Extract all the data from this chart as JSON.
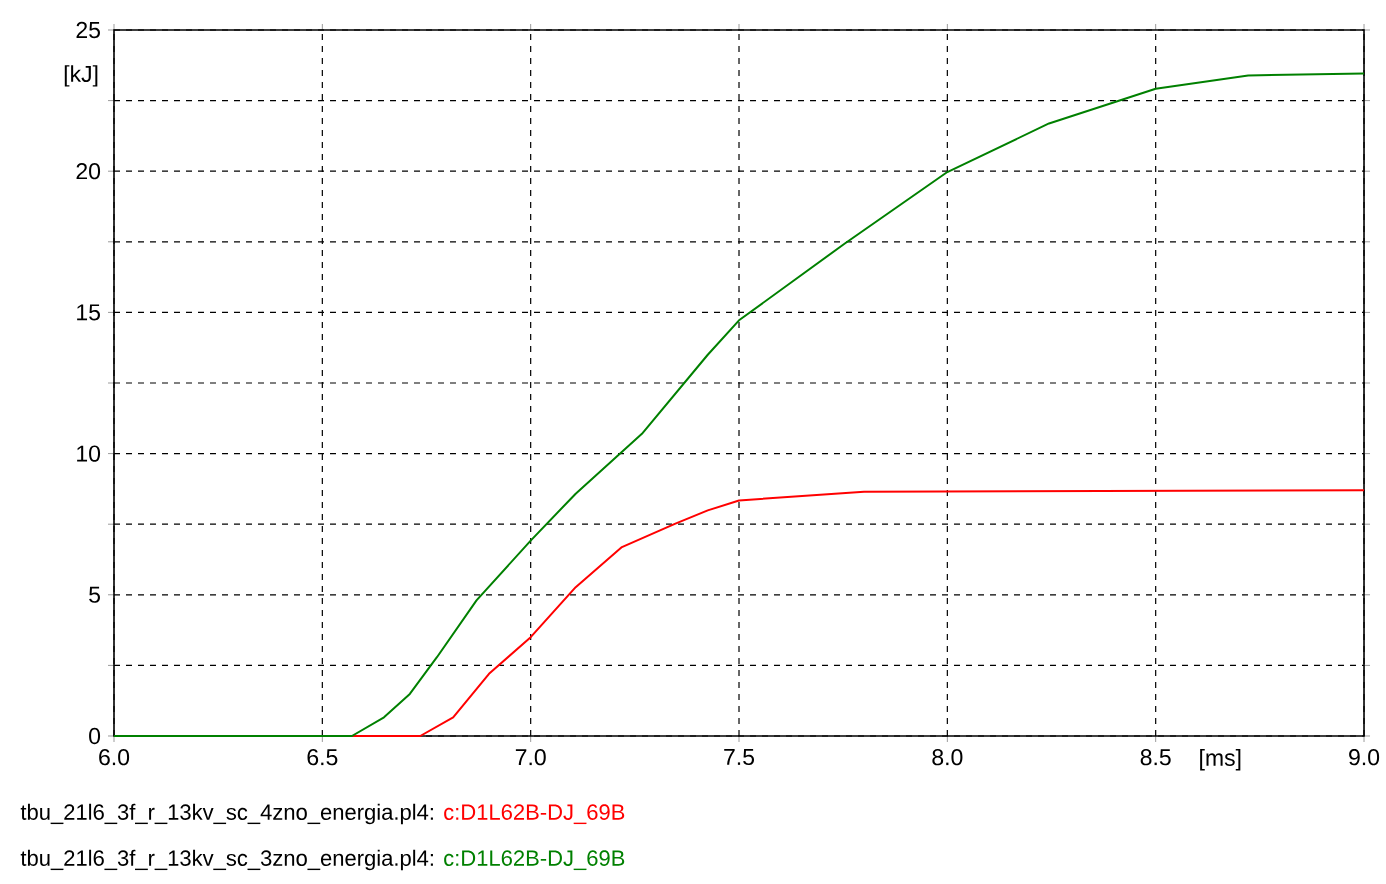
{
  "chart_data": {
    "type": "line",
    "xlabel": "[ms]",
    "ylabel": "[kJ]",
    "xlim": [
      6,
      9
    ],
    "ylim": [
      0,
      25
    ],
    "xticks": [
      {
        "value": 6,
        "label": "6.0"
      },
      {
        "value": 6.5,
        "label": "6.5"
      },
      {
        "value": 7,
        "label": "7.0"
      },
      {
        "value": 7.5,
        "label": "7.5"
      },
      {
        "value": 8,
        "label": "8.0"
      },
      {
        "value": 8.5,
        "label": "8.5"
      },
      {
        "value": 9,
        "label": "9.0"
      }
    ],
    "yticks": [
      0,
      {
        "value": 2.5,
        "label": null
      },
      5,
      {
        "value": 7.5,
        "label": null
      },
      10,
      {
        "value": 12.5,
        "label": null
      },
      15,
      {
        "value": 17.5,
        "label": null
      },
      20,
      {
        "value": 22.5,
        "label": null
      },
      25
    ],
    "grid": true,
    "marker": "none",
    "line_style": "solid",
    "legend": "bottom left",
    "annotations": [
      "tbu_21l6_3f_r_13kv_sc_4zno_energia.pl4:",
      "tbu_21l6_3f_r_13kv_sc_3zno_energia.pl4:"
    ],
    "series": [
      {
        "name": "c:D1L62B-DJ_69B",
        "color": "#ff0000",
        "x": [
          6,
          6.735,
          6.814,
          6.9,
          7.0,
          7.108,
          7.219,
          7.346,
          7.425,
          7.5,
          7.8,
          9.0
        ],
        "values": [
          0,
          0,
          0.66,
          2.2,
          3.5,
          5.27,
          6.69,
          7.51,
          7.99,
          8.34,
          8.65,
          8.7
        ]
      },
      {
        "name": "c:D1L62B-DJ_69B",
        "color": "#008000",
        "x": [
          6,
          6.571,
          6.648,
          6.71,
          6.775,
          6.87,
          7.0,
          7.108,
          7.267,
          7.425,
          7.5,
          7.754,
          8.0,
          8.244,
          8.5,
          8.722,
          9.0
        ],
        "values": [
          0,
          0,
          0.66,
          1.49,
          2.79,
          4.8,
          6.92,
          8.58,
          10.7,
          13.5,
          14.72,
          17.44,
          19.97,
          21.69,
          22.92,
          23.39,
          23.46
        ]
      }
    ]
  }
}
